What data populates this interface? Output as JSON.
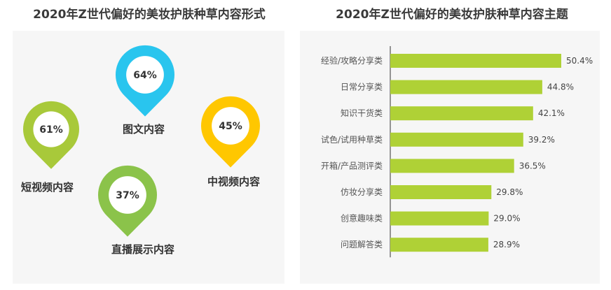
{
  "left_chart": {
    "title": "2020年Z世代偏好的美妆护肤种草内容形式",
    "items": [
      {
        "id": "tuwen",
        "label": "图文内容",
        "value": 64,
        "display": "64%",
        "color": "#29c5ee"
      },
      {
        "id": "duanshipin",
        "label": "短视频内容",
        "value": 61,
        "display": "61%",
        "color": "#a8c93a"
      },
      {
        "id": "zhongshipin",
        "label": "中视频内容",
        "value": 45,
        "display": "45%",
        "color": "#ffc700"
      },
      {
        "id": "zhibo",
        "label": "直播展示内容",
        "value": 37,
        "display": "37%",
        "color": "#8bc34a"
      }
    ]
  },
  "chart_data": {
    "type": "bar",
    "orientation": "horizontal",
    "title": "2020年Z世代偏好的美妆护肤种草内容主题",
    "categories": [
      "经验/攻略分享类",
      "日常分享类",
      "知识干货类",
      "试色/试用种草类",
      "开箱/产品测评类",
      "仿妆分享类",
      "创意趣味类",
      "问题解答类"
    ],
    "values": [
      50.4,
      44.8,
      42.1,
      39.2,
      36.5,
      29.8,
      29.0,
      28.9
    ],
    "value_labels": [
      "50.4%",
      "44.8%",
      "42.1%",
      "39.2%",
      "36.5%",
      "29.8%",
      "29.0%",
      "28.9%"
    ],
    "xlim": [
      0,
      60
    ],
    "bar_color": "#afd136",
    "grid": false,
    "legend": "none"
  }
}
